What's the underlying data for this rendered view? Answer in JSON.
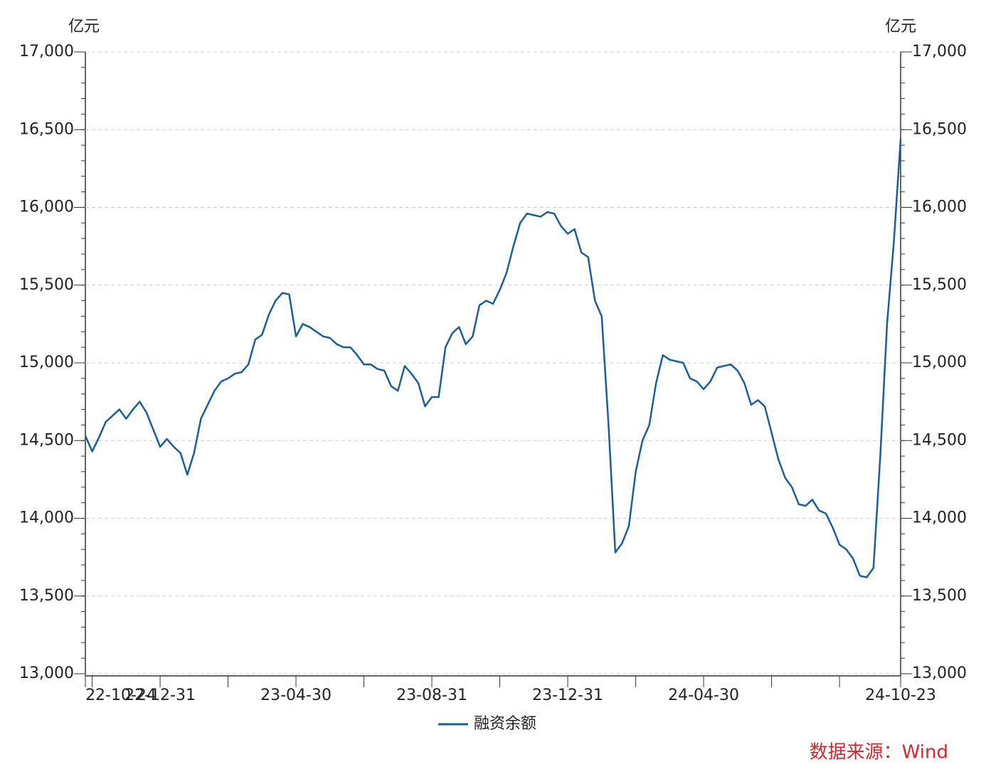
{
  "chart_data": {
    "type": "line",
    "y_unit": "亿元",
    "y2_unit": "亿元",
    "categories": [
      "22-10-24",
      null,
      null,
      null,
      null,
      null,
      null,
      null,
      null,
      null,
      null,
      "22-12-31",
      null,
      null,
      null,
      null,
      null,
      null,
      null,
      null,
      null,
      null,
      null,
      null,
      null,
      null,
      null,
      null,
      null,
      null,
      null,
      "23-04-30",
      null,
      null,
      null,
      null,
      null,
      null,
      null,
      null,
      null,
      null,
      null,
      null,
      null,
      null,
      null,
      null,
      null,
      null,
      null,
      "23-08-31",
      null,
      null,
      null,
      null,
      null,
      null,
      null,
      null,
      null,
      null,
      null,
      null,
      null,
      null,
      null,
      null,
      null,
      null,
      null,
      "23-12-31",
      null,
      null,
      null,
      null,
      null,
      null,
      null,
      null,
      null,
      null,
      null,
      null,
      null,
      null,
      null,
      null,
      null,
      null,
      null,
      "24-04-30",
      null,
      null,
      null,
      null,
      null,
      null,
      null,
      null,
      null,
      null,
      null,
      null,
      null,
      null,
      null,
      null,
      null,
      null,
      null,
      null,
      null,
      null,
      null,
      null,
      null,
      null,
      null,
      null,
      "24-10-23"
    ],
    "series": [
      {
        "name": "融资余额",
        "color": "#1a5e9a",
        "values": [
          14530,
          14430,
          14520,
          14620,
          14660,
          14700,
          14640,
          14700,
          14750,
          14680,
          14570,
          14460,
          14510,
          14460,
          14420,
          14280,
          14420,
          14640,
          14730,
          14820,
          14880,
          14900,
          14930,
          14940,
          14990,
          15150,
          15180,
          15310,
          15400,
          15450,
          15440,
          15170,
          15250,
          15230,
          15200,
          15170,
          15160,
          15120,
          15100,
          15100,
          15050,
          14990,
          14990,
          14960,
          14950,
          14850,
          14820,
          14980,
          14930,
          14870,
          14720,
          14780,
          14780,
          15100,
          15190,
          15230,
          15120,
          15170,
          15370,
          15400,
          15380,
          15470,
          15580,
          15750,
          15900,
          15960,
          15950,
          15940,
          15970,
          15960,
          15880,
          15830,
          15860,
          15710,
          15680,
          15400,
          15300,
          14600,
          13780,
          13840,
          13950,
          14300,
          14500,
          14600,
          14870,
          15050,
          15020,
          15010,
          15000,
          14900,
          14880,
          14830,
          14880,
          14970,
          14980,
          14990,
          14950,
          14870,
          14730,
          14760,
          14720,
          14550,
          14380,
          14260,
          14200,
          14090,
          14080,
          14120,
          14050,
          14030,
          13940,
          13830,
          13800,
          13740,
          13630,
          13620,
          13680,
          14400,
          15250,
          15780,
          16440
        ]
      }
    ],
    "ylim": [
      13000,
      17000
    ],
    "yticks": [
      {
        "value": 13000,
        "label": "13,000"
      },
      {
        "value": 13500,
        "label": "13,500"
      },
      {
        "value": 14000,
        "label": "14,000"
      },
      {
        "value": 14500,
        "label": "14,500"
      },
      {
        "value": 15000,
        "label": "15,000"
      },
      {
        "value": 15500,
        "label": "15,500"
      },
      {
        "value": 16000,
        "label": "16,000"
      },
      {
        "value": 16500,
        "label": "16,500"
      },
      {
        "value": 17000,
        "label": "17,000"
      }
    ],
    "y2lim": [
      13000,
      17000
    ],
    "y2ticks": [
      {
        "value": 13000,
        "label": "13,000"
      },
      {
        "value": 13500,
        "label": "13,500"
      },
      {
        "value": 14000,
        "label": "14,000"
      },
      {
        "value": 14500,
        "label": "14,500"
      },
      {
        "value": 15000,
        "label": "15,000"
      },
      {
        "value": 15500,
        "label": "15,500"
      },
      {
        "value": 16000,
        "label": "16,000"
      },
      {
        "value": 16500,
        "label": "16,500"
      },
      {
        "value": 17000,
        "label": "17,000"
      }
    ],
    "grid": true,
    "source": "数据来源：Wind",
    "source_color": "#d0282e"
  }
}
